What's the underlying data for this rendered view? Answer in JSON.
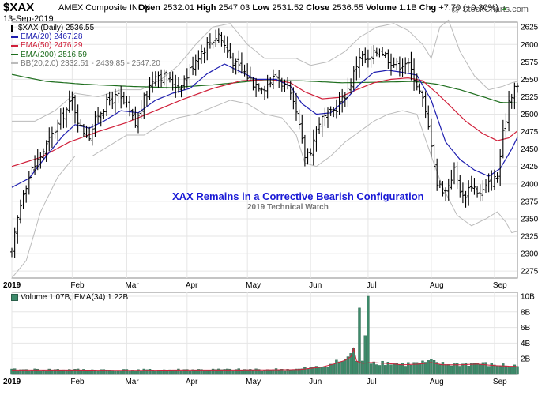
{
  "header": {
    "symbol": "$XAX",
    "exchange": "AMEX Composite INDX",
    "date": "13-Sep-2019",
    "open_label": "Open",
    "open": "2532.01",
    "high_label": "High",
    "high": "2547.03",
    "low_label": "Low",
    "low": "2531.52",
    "close_label": "Close",
    "close": "2536.55",
    "volume_label": "Volume",
    "volume": "1.1B",
    "chg_label": "Chg",
    "chg": "+7.70 (+0.30%)",
    "brand": "@ StockCharts.com"
  },
  "legend": [
    {
      "text": "$XAX (Daily) 2536.55",
      "color": "#000000",
      "icon": "price-bar-icon"
    },
    {
      "text": "EMA(20) 2467.28",
      "color": "#1f1fb0"
    },
    {
      "text": "EMA(50) 2476.29",
      "color": "#d0203a"
    },
    {
      "text": "EMA(200) 2516.59",
      "color": "#1e6e1e"
    },
    {
      "text": "BB(20,2.0) 2332.51 - 2439.85 - 2547.20",
      "color": "#bbbbbb"
    }
  ],
  "volume_legend": {
    "text": "Volume 1.07B, EMA(34) 1.22B",
    "color": "#000000"
  },
  "annotation": {
    "headline": "XAX Remains in a Corrective Bearish Configuration",
    "subline": "2019 Technical Watch"
  },
  "colors": {
    "price": "#000000",
    "ema20": "#1f1fb0",
    "ema50": "#d0203a",
    "ema200": "#1e6e1e",
    "bb": "#bbbbbb",
    "volume": "#3d8a6a",
    "volume_ema": "#d0203a",
    "grid": "#e6e6e6"
  },
  "chart_data": {
    "type": "line",
    "price_axis": {
      "ylim": [
        2265,
        2632
      ],
      "ticks": [
        2275,
        2300,
        2325,
        2350,
        2375,
        2400,
        2425,
        2450,
        2475,
        2500,
        2525,
        2550,
        2575,
        2600,
        2625
      ]
    },
    "volume_axis": {
      "ylim": [
        0,
        10.5
      ],
      "ticks": [
        2,
        4,
        6,
        8,
        10
      ],
      "tick_labels": [
        "2B",
        "4B",
        "6B",
        "8B",
        "10B"
      ]
    },
    "x_labels": [
      {
        "label": "2019",
        "day": 0,
        "bold": true
      },
      {
        "label": "Feb",
        "day": 21
      },
      {
        "label": "Mar",
        "day": 40
      },
      {
        "label": "Apr",
        "day": 61
      },
      {
        "label": "May",
        "day": 82
      },
      {
        "label": "Jun",
        "day": 104
      },
      {
        "label": "Jul",
        "day": 124
      },
      {
        "label": "Aug",
        "day": 146
      },
      {
        "label": "Sep",
        "day": 168
      }
    ],
    "days": 177,
    "close_anchors": [
      [
        0,
        2300
      ],
      [
        2,
        2350
      ],
      [
        4,
        2390
      ],
      [
        7,
        2420
      ],
      [
        10,
        2440
      ],
      [
        14,
        2470
      ],
      [
        18,
        2500
      ],
      [
        21,
        2520
      ],
      [
        24,
        2480
      ],
      [
        27,
        2470
      ],
      [
        30,
        2500
      ],
      [
        34,
        2520
      ],
      [
        37,
        2525
      ],
      [
        40,
        2510
      ],
      [
        43,
        2485
      ],
      [
        46,
        2520
      ],
      [
        50,
        2560
      ],
      [
        54,
        2550
      ],
      [
        58,
        2540
      ],
      [
        61,
        2555
      ],
      [
        64,
        2580
      ],
      [
        68,
        2600
      ],
      [
        72,
        2615
      ],
      [
        75,
        2590
      ],
      [
        78,
        2570
      ],
      [
        81,
        2560
      ],
      [
        84,
        2545
      ],
      [
        88,
        2540
      ],
      [
        92,
        2555
      ],
      [
        96,
        2535
      ],
      [
        99,
        2500
      ],
      [
        102,
        2440
      ],
      [
        104,
        2450
      ],
      [
        107,
        2490
      ],
      [
        111,
        2500
      ],
      [
        115,
        2520
      ],
      [
        118,
        2545
      ],
      [
        121,
        2585
      ],
      [
        124,
        2575
      ],
      [
        128,
        2595
      ],
      [
        131,
        2580
      ],
      [
        134,
        2570
      ],
      [
        137,
        2575
      ],
      [
        140,
        2555
      ],
      [
        143,
        2520
      ],
      [
        146,
        2460
      ],
      [
        148,
        2400
      ],
      [
        151,
        2390
      ],
      [
        154,
        2420
      ],
      [
        157,
        2380
      ],
      [
        160,
        2400
      ],
      [
        163,
        2385
      ],
      [
        166,
        2400
      ],
      [
        169,
        2410
      ],
      [
        171,
        2470
      ],
      [
        173,
        2520
      ],
      [
        175,
        2540
      ],
      [
        176,
        2537
      ]
    ],
    "ema20_anchors": [
      [
        0,
        2395
      ],
      [
        6,
        2408
      ],
      [
        12,
        2440
      ],
      [
        18,
        2470
      ],
      [
        22,
        2485
      ],
      [
        27,
        2480
      ],
      [
        32,
        2490
      ],
      [
        38,
        2505
      ],
      [
        44,
        2502
      ],
      [
        50,
        2520
      ],
      [
        56,
        2530
      ],
      [
        62,
        2537
      ],
      [
        68,
        2558
      ],
      [
        74,
        2572
      ],
      [
        79,
        2562
      ],
      [
        85,
        2550
      ],
      [
        92,
        2550
      ],
      [
        97,
        2540
      ],
      [
        101,
        2515
      ],
      [
        106,
        2500
      ],
      [
        111,
        2502
      ],
      [
        116,
        2520
      ],
      [
        121,
        2543
      ],
      [
        126,
        2560
      ],
      [
        131,
        2563
      ],
      [
        136,
        2560
      ],
      [
        141,
        2556
      ],
      [
        146,
        2520
      ],
      [
        151,
        2460
      ],
      [
        156,
        2435
      ],
      [
        161,
        2420
      ],
      [
        166,
        2411
      ],
      [
        170,
        2422
      ],
      [
        174,
        2450
      ],
      [
        176,
        2467
      ]
    ],
    "ema50_anchors": [
      [
        0,
        2425
      ],
      [
        10,
        2438
      ],
      [
        20,
        2460
      ],
      [
        30,
        2475
      ],
      [
        40,
        2488
      ],
      [
        50,
        2505
      ],
      [
        60,
        2522
      ],
      [
        70,
        2537
      ],
      [
        80,
        2548
      ],
      [
        90,
        2550
      ],
      [
        97,
        2545
      ],
      [
        102,
        2532
      ],
      [
        108,
        2522
      ],
      [
        114,
        2524
      ],
      [
        120,
        2535
      ],
      [
        126,
        2545
      ],
      [
        132,
        2550
      ],
      [
        138,
        2552
      ],
      [
        143,
        2548
      ],
      [
        148,
        2530
      ],
      [
        153,
        2510
      ],
      [
        158,
        2490
      ],
      [
        164,
        2472
      ],
      [
        169,
        2462
      ],
      [
        173,
        2466
      ],
      [
        176,
        2476
      ]
    ],
    "ema200_anchors": [
      [
        0,
        2557
      ],
      [
        12,
        2547
      ],
      [
        25,
        2543
      ],
      [
        40,
        2540
      ],
      [
        55,
        2538
      ],
      [
        70,
        2542
      ],
      [
        85,
        2548
      ],
      [
        100,
        2548
      ],
      [
        115,
        2545
      ],
      [
        130,
        2546
      ],
      [
        140,
        2547
      ],
      [
        148,
        2543
      ],
      [
        156,
        2535
      ],
      [
        164,
        2525
      ],
      [
        170,
        2517
      ],
      [
        176,
        2516
      ]
    ],
    "bb_upper_anchors": [
      [
        0,
        2490
      ],
      [
        8,
        2490
      ],
      [
        15,
        2505
      ],
      [
        22,
        2530
      ],
      [
        30,
        2525
      ],
      [
        38,
        2535
      ],
      [
        45,
        2535
      ],
      [
        52,
        2550
      ],
      [
        58,
        2570
      ],
      [
        64,
        2600
      ],
      [
        70,
        2625
      ],
      [
        76,
        2630
      ],
      [
        82,
        2600
      ],
      [
        88,
        2580
      ],
      [
        94,
        2580
      ],
      [
        99,
        2580
      ],
      [
        104,
        2570
      ],
      [
        110,
        2575
      ],
      [
        116,
        2590
      ],
      [
        121,
        2610
      ],
      [
        127,
        2625
      ],
      [
        133,
        2630
      ],
      [
        138,
        2620
      ],
      [
        143,
        2600
      ],
      [
        146,
        2580
      ],
      [
        149,
        2625
      ],
      [
        152,
        2635
      ],
      [
        156,
        2590
      ],
      [
        161,
        2555
      ],
      [
        166,
        2535
      ],
      [
        171,
        2540
      ],
      [
        174,
        2545
      ],
      [
        176,
        2547
      ]
    ],
    "bb_lower_anchors": [
      [
        0,
        2265
      ],
      [
        5,
        2290
      ],
      [
        10,
        2360
      ],
      [
        16,
        2410
      ],
      [
        22,
        2440
      ],
      [
        28,
        2440
      ],
      [
        34,
        2455
      ],
      [
        40,
        2470
      ],
      [
        46,
        2470
      ],
      [
        52,
        2485
      ],
      [
        58,
        2495
      ],
      [
        64,
        2500
      ],
      [
        70,
        2510
      ],
      [
        76,
        2520
      ],
      [
        82,
        2515
      ],
      [
        88,
        2500
      ],
      [
        94,
        2495
      ],
      [
        99,
        2470
      ],
      [
        102,
        2430
      ],
      [
        106,
        2425
      ],
      [
        111,
        2440
      ],
      [
        116,
        2460
      ],
      [
        121,
        2475
      ],
      [
        126,
        2490
      ],
      [
        131,
        2500
      ],
      [
        136,
        2505
      ],
      [
        141,
        2500
      ],
      [
        146,
        2440
      ],
      [
        150,
        2395
      ],
      [
        155,
        2355
      ],
      [
        160,
        2340
      ],
      [
        165,
        2350
      ],
      [
        169,
        2360
      ],
      [
        172,
        2345
      ],
      [
        174,
        2330
      ],
      [
        176,
        2332
      ]
    ],
    "volume_anchors": [
      [
        0,
        0.6
      ],
      [
        20,
        0.6
      ],
      [
        40,
        0.55
      ],
      [
        60,
        0.6
      ],
      [
        80,
        0.6
      ],
      [
        100,
        0.65
      ],
      [
        108,
        1.0
      ],
      [
        112,
        1.4
      ],
      [
        116,
        1.9
      ],
      [
        118,
        2.4
      ],
      [
        119,
        3.5
      ],
      [
        120,
        1.8
      ],
      [
        121,
        8.5
      ],
      [
        122,
        1.5
      ],
      [
        124,
        10.0
      ],
      [
        125,
        1.6
      ],
      [
        130,
        1.5
      ],
      [
        136,
        1.3
      ],
      [
        142,
        1.4
      ],
      [
        146,
        1.6
      ],
      [
        150,
        1.3
      ],
      [
        156,
        1.3
      ],
      [
        162,
        1.4
      ],
      [
        168,
        1.2
      ],
      [
        176,
        1.07
      ]
    ],
    "volume_spikes": [
      [
        121,
        8.5
      ],
      [
        124,
        10.0
      ]
    ]
  }
}
